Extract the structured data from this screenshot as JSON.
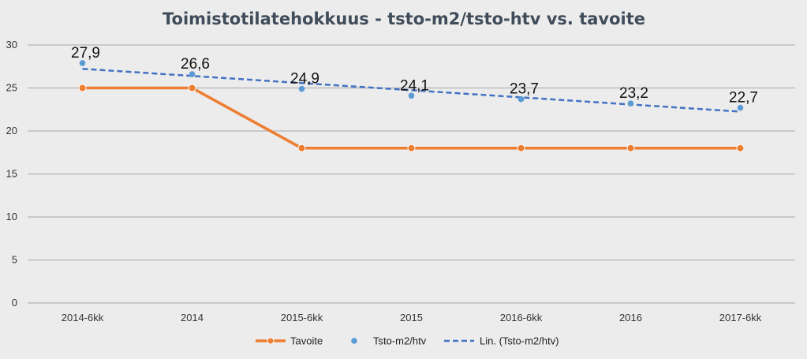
{
  "chart_data": {
    "type": "line",
    "title": "Toimistotilatehokkuus - tsto-m2/tsto-htv vs. tavoite",
    "categories": [
      "2014-6kk",
      "2014",
      "2015-6kk",
      "2015",
      "2016-6kk",
      "2016",
      "2017-6kk"
    ],
    "ylim": [
      0,
      30
    ],
    "yticks": [
      0,
      5,
      10,
      15,
      20,
      25,
      30
    ],
    "grid": true,
    "legend_position": "bottom",
    "series": [
      {
        "name": "Tavoite",
        "kind": "line-marker",
        "color": "#ed7d31",
        "values": [
          25,
          25,
          18,
          18,
          18,
          18,
          18
        ]
      },
      {
        "name": "Tsto-m2/htv",
        "kind": "marker",
        "color": "#5b9bd5",
        "values": [
          27.9,
          26.6,
          24.9,
          24.1,
          23.7,
          23.2,
          22.7
        ],
        "data_labels": [
          "27,9",
          "26,6",
          "24,9",
          "24,1",
          "23,7",
          "23,2",
          "22,7"
        ]
      },
      {
        "name": "Lin. (Tsto-m2/htv)",
        "kind": "trendline",
        "color": "#4472c4",
        "values": [
          27.23,
          26.4,
          25.57,
          24.74,
          23.91,
          23.08,
          22.25
        ]
      }
    ]
  }
}
